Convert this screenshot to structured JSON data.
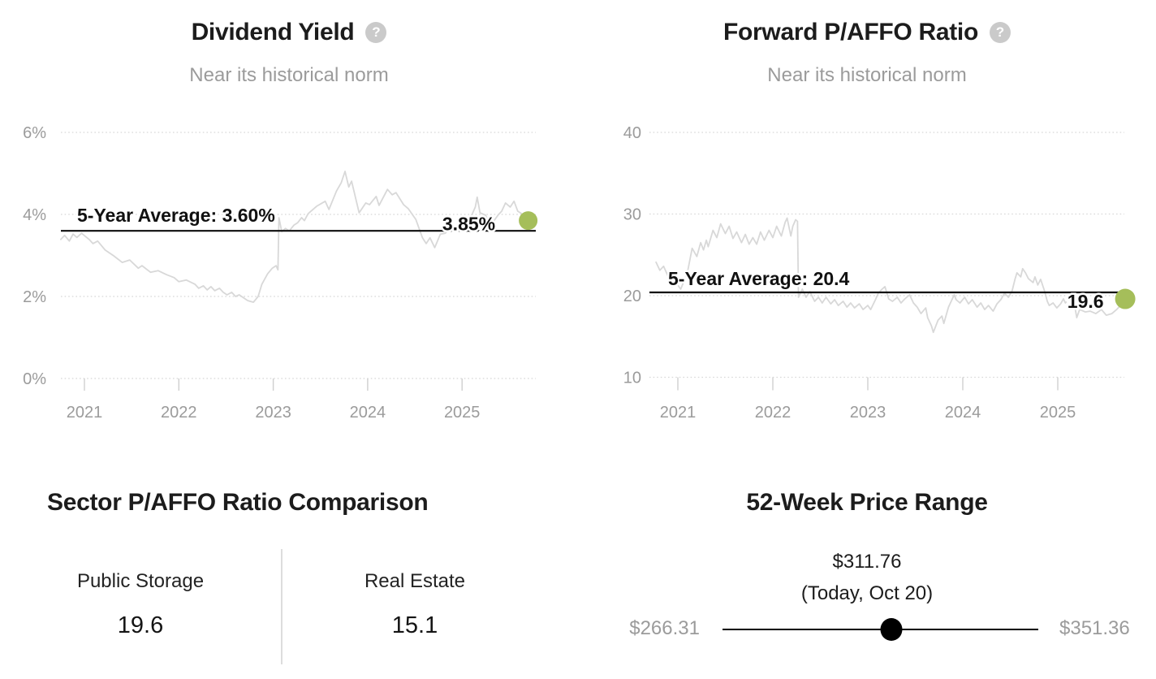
{
  "icons": {
    "help_glyph": "?"
  },
  "colors": {
    "series_line": "#d8d8d8",
    "average_line": "#0d0d0d",
    "marker_green": "#a5be5a",
    "axis_text": "#9b9b9b",
    "title_text": "#1c1c1c",
    "subtitle_text": "#9b9b9b",
    "gridline": "#d8d8d8",
    "tick_mark": "#cfcfcf",
    "divider": "#dddddd",
    "slider": "#000000"
  },
  "chart_data": [
    {
      "type": "line",
      "title": "Dividend Yield",
      "subtitle": "Near its historical norm",
      "x_ticks": [
        2021,
        2022,
        2023,
        2024,
        2025
      ],
      "x_tick_labels": [
        "2021",
        "2022",
        "2023",
        "2024",
        "2025"
      ],
      "y_ticks": [
        6,
        4,
        2,
        0
      ],
      "y_tick_labels": [
        "6%",
        "4%",
        "2%",
        "0%"
      ],
      "xlim": [
        2020.73,
        2025.82
      ],
      "ylim": [
        0,
        6
      ],
      "grid": "dotted-horizontal",
      "average_value": 3.6,
      "average_label": "5-Year Average: 3.60%",
      "current_value": 3.85,
      "current_label": "3.85%",
      "series": [
        [
          2020.75,
          3.39
        ],
        [
          2020.79,
          3.49
        ],
        [
          2020.84,
          3.35
        ],
        [
          2020.88,
          3.52
        ],
        [
          2020.92,
          3.44
        ],
        [
          2020.97,
          3.54
        ],
        [
          2021.05,
          3.39
        ],
        [
          2021.09,
          3.29
        ],
        [
          2021.14,
          3.35
        ],
        [
          2021.22,
          3.13
        ],
        [
          2021.31,
          2.99
        ],
        [
          2021.4,
          2.83
        ],
        [
          2021.48,
          2.89
        ],
        [
          2021.57,
          2.69
        ],
        [
          2021.61,
          2.75
        ],
        [
          2021.7,
          2.59
        ],
        [
          2021.78,
          2.63
        ],
        [
          2021.87,
          2.53
        ],
        [
          2021.95,
          2.46
        ],
        [
          2022.0,
          2.36
        ],
        [
          2022.08,
          2.4
        ],
        [
          2022.17,
          2.3
        ],
        [
          2022.21,
          2.2
        ],
        [
          2022.26,
          2.26
        ],
        [
          2022.3,
          2.16
        ],
        [
          2022.34,
          2.24
        ],
        [
          2022.38,
          2.14
        ],
        [
          2022.43,
          2.2
        ],
        [
          2022.47,
          2.1
        ],
        [
          2022.51,
          2.04
        ],
        [
          2022.56,
          2.1
        ],
        [
          2022.6,
          2.0
        ],
        [
          2022.64,
          2.04
        ],
        [
          2022.69,
          1.96
        ],
        [
          2022.73,
          1.9
        ],
        [
          2022.79,
          1.86
        ],
        [
          2022.84,
          2.0
        ],
        [
          2022.88,
          2.3
        ],
        [
          2022.94,
          2.55
        ],
        [
          2022.99,
          2.69
        ],
        [
          2023.03,
          2.75
        ],
        [
          2023.05,
          2.65
        ],
        [
          2023.06,
          3.92
        ],
        [
          2023.09,
          3.58
        ],
        [
          2023.13,
          3.66
        ],
        [
          2023.17,
          3.6
        ],
        [
          2023.22,
          3.74
        ],
        [
          2023.26,
          3.8
        ],
        [
          2023.3,
          3.92
        ],
        [
          2023.33,
          3.85
        ],
        [
          2023.37,
          4.02
        ],
        [
          2023.46,
          4.2
        ],
        [
          2023.55,
          4.32
        ],
        [
          2023.59,
          4.12
        ],
        [
          2023.67,
          4.57
        ],
        [
          2023.72,
          4.77
        ],
        [
          2023.76,
          5.05
        ],
        [
          2023.8,
          4.67
        ],
        [
          2023.83,
          4.81
        ],
        [
          2023.91,
          4.04
        ],
        [
          2023.98,
          4.28
        ],
        [
          2024.02,
          4.24
        ],
        [
          2024.09,
          4.44
        ],
        [
          2024.12,
          4.22
        ],
        [
          2024.21,
          4.61
        ],
        [
          2024.26,
          4.48
        ],
        [
          2024.3,
          4.53
        ],
        [
          2024.38,
          4.24
        ],
        [
          2024.43,
          4.14
        ],
        [
          2024.51,
          3.88
        ],
        [
          2024.58,
          3.43
        ],
        [
          2024.62,
          3.29
        ],
        [
          2024.66,
          3.43
        ],
        [
          2024.71,
          3.19
        ],
        [
          2024.77,
          3.52
        ],
        [
          2024.82,
          3.54
        ],
        [
          2024.9,
          3.72
        ],
        [
          2024.94,
          3.64
        ],
        [
          2025.01,
          3.94
        ],
        [
          2025.05,
          3.84
        ],
        [
          2025.09,
          3.92
        ],
        [
          2025.14,
          4.18
        ],
        [
          2025.16,
          4.42
        ],
        [
          2025.19,
          4.04
        ],
        [
          2025.25,
          3.98
        ],
        [
          2025.29,
          3.72
        ],
        [
          2025.33,
          3.82
        ],
        [
          2025.38,
          3.98
        ],
        [
          2025.42,
          4.08
        ],
        [
          2025.46,
          4.28
        ],
        [
          2025.51,
          4.18
        ],
        [
          2025.55,
          4.32
        ],
        [
          2025.59,
          4.08
        ],
        [
          2025.63,
          4.02
        ],
        [
          2025.68,
          3.78
        ],
        [
          2025.7,
          3.85
        ]
      ]
    },
    {
      "type": "line",
      "title": "Forward P/AFFO Ratio",
      "subtitle": "Near its historical norm",
      "x_ticks": [
        2021,
        2022,
        2023,
        2024,
        2025
      ],
      "x_tick_labels": [
        "2021",
        "2022",
        "2023",
        "2024",
        "2025"
      ],
      "y_ticks": [
        40,
        30,
        20,
        10
      ],
      "y_tick_labels": [
        "40",
        "30",
        "20",
        "10"
      ],
      "xlim": [
        2020.73,
        2025.82
      ],
      "ylim": [
        10,
        40
      ],
      "grid": "dotted-horizontal",
      "average_value": 20.4,
      "average_label": "5-Year Average: 20.4",
      "current_value": 19.6,
      "current_label": "19.6",
      "series": [
        [
          2020.77,
          24.1
        ],
        [
          2020.81,
          23.1
        ],
        [
          2020.85,
          23.6
        ],
        [
          2020.9,
          22.3
        ],
        [
          2020.94,
          21.1
        ],
        [
          2020.98,
          21.6
        ],
        [
          2021.03,
          20.8
        ],
        [
          2021.1,
          22.8
        ],
        [
          2021.15,
          25.8
        ],
        [
          2021.2,
          24.8
        ],
        [
          2021.24,
          26.5
        ],
        [
          2021.27,
          25.6
        ],
        [
          2021.3,
          26.8
        ],
        [
          2021.32,
          26.0
        ],
        [
          2021.37,
          28.0
        ],
        [
          2021.41,
          27.1
        ],
        [
          2021.45,
          28.8
        ],
        [
          2021.5,
          27.6
        ],
        [
          2021.54,
          28.5
        ],
        [
          2021.58,
          27.0
        ],
        [
          2021.62,
          27.8
        ],
        [
          2021.67,
          26.5
        ],
        [
          2021.71,
          27.5
        ],
        [
          2021.75,
          26.3
        ],
        [
          2021.79,
          27.1
        ],
        [
          2021.83,
          26.3
        ],
        [
          2021.87,
          27.8
        ],
        [
          2021.91,
          26.8
        ],
        [
          2021.96,
          28.0
        ],
        [
          2022.0,
          27.1
        ],
        [
          2022.04,
          28.5
        ],
        [
          2022.09,
          27.3
        ],
        [
          2022.13,
          29.0
        ],
        [
          2022.15,
          29.5
        ],
        [
          2022.19,
          27.3
        ],
        [
          2022.21,
          28.5
        ],
        [
          2022.24,
          29.3
        ],
        [
          2022.26,
          29.1
        ],
        [
          2022.27,
          19.8
        ],
        [
          2022.31,
          20.8
        ],
        [
          2022.35,
          19.8
        ],
        [
          2022.39,
          20.5
        ],
        [
          2022.44,
          19.3
        ],
        [
          2022.48,
          19.8
        ],
        [
          2022.52,
          19.1
        ],
        [
          2022.56,
          19.8
        ],
        [
          2022.61,
          19.0
        ],
        [
          2022.65,
          19.5
        ],
        [
          2022.69,
          18.8
        ],
        [
          2022.74,
          19.3
        ],
        [
          2022.78,
          18.6
        ],
        [
          2022.82,
          19.1
        ],
        [
          2022.86,
          18.5
        ],
        [
          2022.91,
          19.0
        ],
        [
          2022.95,
          18.3
        ],
        [
          2023.0,
          18.8
        ],
        [
          2023.03,
          18.3
        ],
        [
          2023.08,
          19.5
        ],
        [
          2023.11,
          20.3
        ],
        [
          2023.15,
          20.8
        ],
        [
          2023.18,
          21.1
        ],
        [
          2023.22,
          19.6
        ],
        [
          2023.26,
          19.3
        ],
        [
          2023.31,
          19.8
        ],
        [
          2023.35,
          19.1
        ],
        [
          2023.39,
          19.6
        ],
        [
          2023.44,
          20.1
        ],
        [
          2023.48,
          19.1
        ],
        [
          2023.52,
          18.6
        ],
        [
          2023.56,
          17.8
        ],
        [
          2023.61,
          18.5
        ],
        [
          2023.63,
          17.3
        ],
        [
          2023.67,
          16.3
        ],
        [
          2023.69,
          15.5
        ],
        [
          2023.74,
          17.0
        ],
        [
          2023.78,
          17.5
        ],
        [
          2023.8,
          16.6
        ],
        [
          2023.85,
          18.6
        ],
        [
          2023.89,
          19.6
        ],
        [
          2023.91,
          20.1
        ],
        [
          2023.93,
          19.5
        ],
        [
          2023.97,
          19.1
        ],
        [
          2024.02,
          19.8
        ],
        [
          2024.06,
          19.0
        ],
        [
          2024.1,
          19.5
        ],
        [
          2024.15,
          18.6
        ],
        [
          2024.19,
          19.1
        ],
        [
          2024.23,
          18.3
        ],
        [
          2024.27,
          18.8
        ],
        [
          2024.32,
          18.1
        ],
        [
          2024.36,
          19.0
        ],
        [
          2024.4,
          19.5
        ],
        [
          2024.44,
          20.3
        ],
        [
          2024.48,
          19.8
        ],
        [
          2024.52,
          20.6
        ],
        [
          2024.55,
          22.0
        ],
        [
          2024.57,
          22.8
        ],
        [
          2024.61,
          22.3
        ],
        [
          2024.63,
          23.3
        ],
        [
          2024.66,
          22.8
        ],
        [
          2024.69,
          22.1
        ],
        [
          2024.74,
          21.6
        ],
        [
          2024.76,
          22.3
        ],
        [
          2024.79,
          21.3
        ],
        [
          2024.82,
          22.0
        ],
        [
          2024.86,
          20.6
        ],
        [
          2024.89,
          19.3
        ],
        [
          2024.91,
          18.8
        ],
        [
          2024.95,
          19.1
        ],
        [
          2024.99,
          18.5
        ],
        [
          2025.03,
          19.0
        ],
        [
          2025.06,
          19.6
        ],
        [
          2025.08,
          19.1
        ],
        [
          2025.12,
          19.5
        ],
        [
          2025.15,
          19.8
        ],
        [
          2025.17,
          19.3
        ],
        [
          2025.2,
          17.3
        ],
        [
          2025.23,
          18.3
        ],
        [
          2025.29,
          18.0
        ],
        [
          2025.34,
          18.1
        ],
        [
          2025.4,
          17.8
        ],
        [
          2025.46,
          18.3
        ],
        [
          2025.51,
          17.6
        ],
        [
          2025.57,
          17.8
        ],
        [
          2025.62,
          18.3
        ],
        [
          2025.66,
          18.8
        ],
        [
          2025.71,
          19.6
        ]
      ]
    }
  ],
  "sector_comparison": {
    "title": "Sector P/AFFO Ratio Comparison",
    "items": [
      {
        "label": "Public Storage",
        "value": "19.6"
      },
      {
        "label": "Real Estate",
        "value": "15.1"
      }
    ]
  },
  "price_range": {
    "title": "52-Week Price Range",
    "current_label": "$311.76",
    "current_sublabel": "(Today, Oct 20)",
    "low_label": "$266.31",
    "high_label": "$351.36",
    "low_value": 266.31,
    "high_value": 351.36,
    "current_value": 311.76
  }
}
